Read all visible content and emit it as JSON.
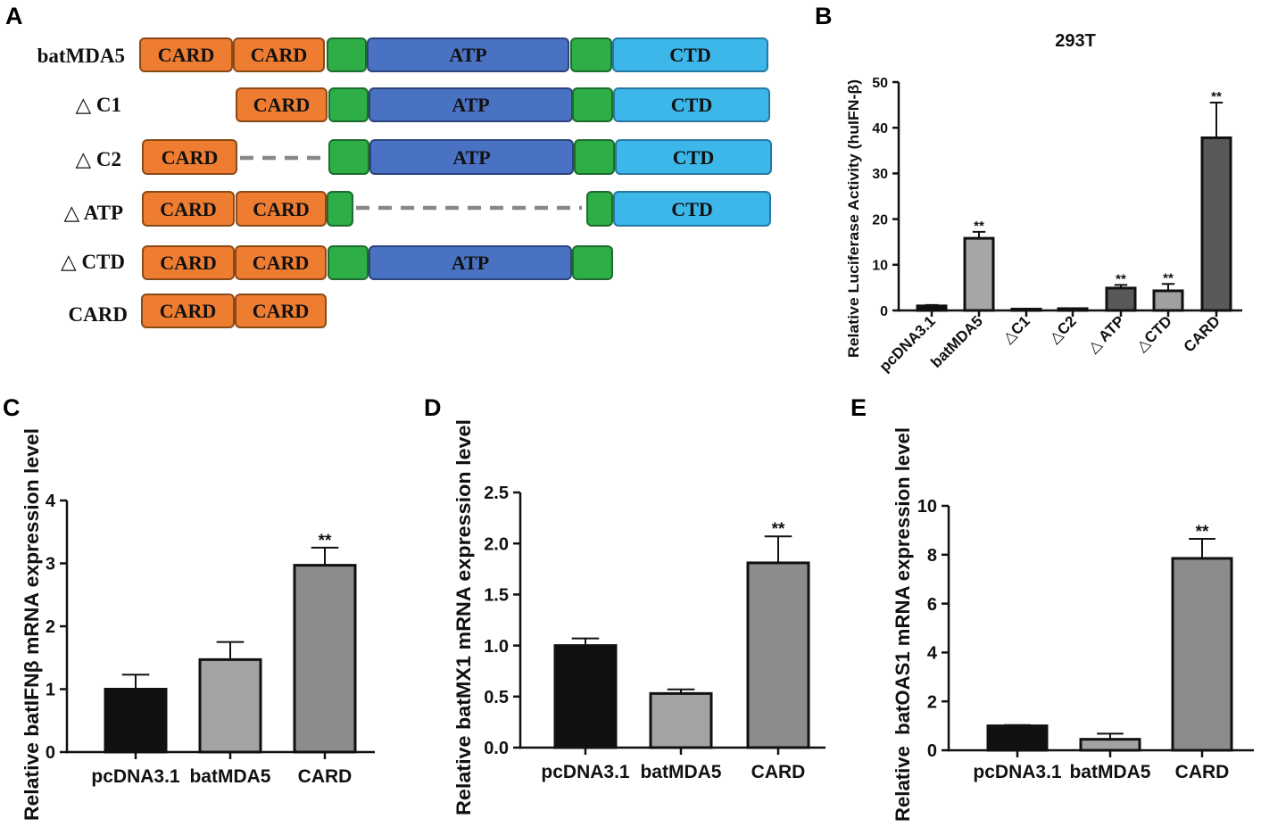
{
  "diagram": {
    "letter": "A",
    "colors": {
      "CARD": "#EE7D31",
      "linker": "#2EAE47",
      "ATP": "#4A72C2",
      "CTD": "#3DB6EA",
      "deletion": "#888888"
    },
    "constructs": [
      {
        "name": "batMDA5",
        "domains": [
          "CARD",
          "CARD",
          "ATP",
          "CTD"
        ]
      },
      {
        "name": "△ C1",
        "domains": [
          "CARD",
          "ATP",
          "CTD"
        ]
      },
      {
        "name": "△ C2",
        "domains": [
          "CARD",
          "ATP",
          "CTD"
        ]
      },
      {
        "name": "△ ATP",
        "domains": [
          "CARD",
          "CARD",
          "CTD"
        ]
      },
      {
        "name": "△ CTD",
        "domains": [
          "CARD",
          "CARD",
          "ATP"
        ]
      },
      {
        "name": "CARD",
        "domains": [
          "CARD",
          "CARD"
        ]
      }
    ]
  },
  "chart_data": [
    {
      "panel": "B",
      "type": "bar",
      "title": "293T",
      "categories": [
        "pcDNA3.1",
        "batMDA5",
        "△C1",
        "△C2",
        "△ ATP",
        "△CTD",
        "CARD"
      ],
      "values": [
        1.0,
        15.8,
        0.3,
        0.4,
        4.9,
        4.3,
        37.8
      ],
      "errors": [
        0.2,
        1.4,
        0.1,
        0.1,
        0.7,
        1.5,
        7.7
      ],
      "significance": [
        "",
        "**",
        "",
        "",
        "**",
        "**",
        "**"
      ],
      "ylabel": "Relative Luciferase Activity (huIFN-β)",
      "ylim": [
        0,
        50
      ],
      "yticks": [
        "0",
        "10",
        "20",
        "30",
        "40",
        "50"
      ],
      "colors": [
        "#111111",
        "#a6a6a6",
        "#555555",
        "#555555",
        "#595959",
        "#a0a0a0",
        "#595959"
      ]
    },
    {
      "panel": "C",
      "type": "bar",
      "categories": [
        "pcDNA3.1",
        "batMDA5",
        "CARD"
      ],
      "values": [
        1.0,
        1.47,
        2.97
      ],
      "errors": [
        0.23,
        0.28,
        0.28
      ],
      "significance": [
        "",
        "",
        "**"
      ],
      "ylabel": "Relative batIFNβ mRNA expression level",
      "ylim": [
        0,
        4
      ],
      "yticks": [
        "0",
        "1",
        "2",
        "3",
        "4"
      ],
      "colors": [
        "#111111",
        "#a3a3a3",
        "#8c8c8c"
      ]
    },
    {
      "panel": "D",
      "type": "bar",
      "categories": [
        "pcDNA3.1",
        "batMDA5",
        "CARD"
      ],
      "values": [
        1.0,
        0.53,
        1.81
      ],
      "errors": [
        0.07,
        0.04,
        0.26
      ],
      "significance": [
        "",
        "",
        "**"
      ],
      "ylabel": "Relative batMX1 mRNA expression level",
      "ylim": [
        0,
        2.5
      ],
      "yticks": [
        "0.0",
        "0.5",
        "1.0",
        "1.5",
        "2.0",
        "2.5"
      ],
      "colors": [
        "#111111",
        "#a3a3a3",
        "#8c8c8c"
      ]
    },
    {
      "panel": "E",
      "type": "bar",
      "categories": [
        "pcDNA3.1",
        "batMDA5",
        "CARD"
      ],
      "values": [
        1.0,
        0.45,
        7.85
      ],
      "errors": [
        0.03,
        0.23,
        0.8
      ],
      "significance": [
        "",
        "",
        "**"
      ],
      "ylabel": "Relative  batOAS1 mRNA expression level",
      "ylim": [
        0,
        10
      ],
      "yticks": [
        "0",
        "2",
        "4",
        "6",
        "8",
        "10"
      ],
      "colors": [
        "#111111",
        "#a3a3a3",
        "#8c8c8c"
      ]
    }
  ]
}
